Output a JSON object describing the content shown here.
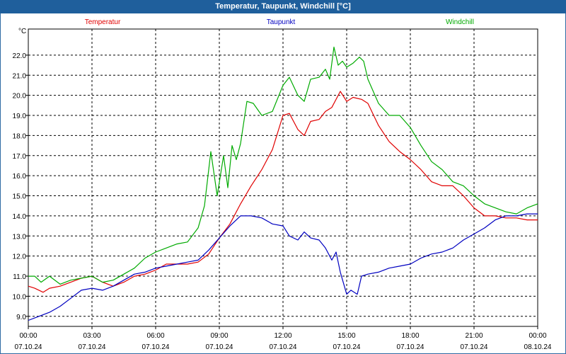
{
  "title": "Temperatur, Taupunkt, Windchill [°C]",
  "chart_data": {
    "type": "line",
    "title": "Temperatur, Taupunkt, Windchill [°C]",
    "ylabel": "°C",
    "ylim": [
      8.5,
      23.3
    ],
    "xlim": [
      0,
      24
    ],
    "y_ticks": [
      "9.0",
      "10.0",
      "11.0",
      "12.0",
      "13.0",
      "14.0",
      "15.0",
      "16.0",
      "17.0",
      "18.0",
      "19.0",
      "20.0",
      "21.0",
      "22.0"
    ],
    "x_ticks": [
      {
        "time": "00:00",
        "date": "07.10.24",
        "h": 0
      },
      {
        "time": "03:00",
        "date": "07.10.24",
        "h": 3
      },
      {
        "time": "06:00",
        "date": "07.10.24",
        "h": 6
      },
      {
        "time": "09:00",
        "date": "07.10.24",
        "h": 9
      },
      {
        "time": "12:00",
        "date": "07.10.24",
        "h": 12
      },
      {
        "time": "15:00",
        "date": "07.10.24",
        "h": 15
      },
      {
        "time": "18:00",
        "date": "07.10.24",
        "h": 18
      },
      {
        "time": "21:00",
        "date": "07.10.24",
        "h": 21
      },
      {
        "time": "00:00",
        "date": "08.10.24",
        "h": 24
      }
    ],
    "grid": true,
    "series": [
      {
        "name": "Temperatur",
        "color": "#e00000",
        "x": [
          0,
          0.3,
          0.7,
          1.0,
          1.5,
          2.0,
          2.5,
          3.0,
          3.5,
          4.0,
          4.5,
          5.0,
          5.5,
          6.0,
          6.5,
          7.0,
          7.5,
          8.0,
          8.5,
          9.0,
          9.5,
          10.0,
          10.5,
          11.0,
          11.5,
          12.0,
          12.3,
          12.7,
          13.0,
          13.3,
          13.7,
          14.0,
          14.3,
          14.7,
          15.0,
          15.3,
          15.7,
          16.0,
          16.5,
          17.0,
          17.5,
          18.0,
          18.5,
          19.0,
          19.5,
          20.0,
          20.5,
          21.0,
          21.5,
          22.0,
          22.5,
          23.0,
          23.5,
          24.0
        ],
        "y": [
          10.5,
          10.4,
          10.2,
          10.4,
          10.5,
          10.7,
          10.9,
          11.0,
          10.7,
          10.5,
          10.7,
          11.0,
          11.1,
          11.3,
          11.6,
          11.6,
          11.6,
          11.7,
          12.1,
          12.9,
          13.6,
          14.6,
          15.5,
          16.3,
          17.3,
          19.0,
          19.1,
          18.3,
          18.0,
          18.7,
          18.8,
          19.2,
          19.4,
          20.2,
          19.7,
          19.9,
          19.8,
          19.6,
          18.5,
          17.7,
          17.2,
          16.8,
          16.3,
          15.7,
          15.5,
          15.5,
          15.0,
          14.4,
          14.0,
          14.0,
          13.9,
          13.9,
          13.8,
          13.8
        ]
      },
      {
        "name": "Taupunkt",
        "color": "#0000c0",
        "x": [
          0,
          0.5,
          1.0,
          1.5,
          2.0,
          2.5,
          3.0,
          3.5,
          4.0,
          4.5,
          5.0,
          5.5,
          6.0,
          6.5,
          7.0,
          7.5,
          8.0,
          8.5,
          9.0,
          9.5,
          10.0,
          10.5,
          11.0,
          11.5,
          12.0,
          12.3,
          12.7,
          13.0,
          13.3,
          13.7,
          14.0,
          14.3,
          14.5,
          14.7,
          15.0,
          15.2,
          15.5,
          15.7,
          16.0,
          16.5,
          17.0,
          17.5,
          18.0,
          18.5,
          19.0,
          19.5,
          20.0,
          20.5,
          21.0,
          21.5,
          22.0,
          22.5,
          23.0,
          23.5,
          24.0
        ],
        "y": [
          8.8,
          9.0,
          9.2,
          9.5,
          9.9,
          10.3,
          10.4,
          10.3,
          10.5,
          10.8,
          11.1,
          11.2,
          11.4,
          11.5,
          11.6,
          11.7,
          11.8,
          12.3,
          12.9,
          13.5,
          14.0,
          14.0,
          13.9,
          13.6,
          13.5,
          13.0,
          12.8,
          13.2,
          12.9,
          12.8,
          12.4,
          11.8,
          12.2,
          11.2,
          10.1,
          10.3,
          10.1,
          11.0,
          11.1,
          11.2,
          11.4,
          11.5,
          11.6,
          11.9,
          12.1,
          12.2,
          12.4,
          12.8,
          13.1,
          13.4,
          13.8,
          14.0,
          14.0,
          14.1,
          14.1
        ]
      },
      {
        "name": "Windchill",
        "color": "#00aa00",
        "x": [
          0,
          0.3,
          0.6,
          1.0,
          1.5,
          2.0,
          2.5,
          3.0,
          3.5,
          4.0,
          4.5,
          5.0,
          5.5,
          6.0,
          6.5,
          7.0,
          7.5,
          8.0,
          8.3,
          8.6,
          8.9,
          9.2,
          9.4,
          9.6,
          9.8,
          10.0,
          10.3,
          10.6,
          11.0,
          11.5,
          12.0,
          12.3,
          12.7,
          13.0,
          13.3,
          13.7,
          14.0,
          14.2,
          14.4,
          14.6,
          14.8,
          15.0,
          15.3,
          15.6,
          15.8,
          16.0,
          16.5,
          17.0,
          17.5,
          18.0,
          18.5,
          19.0,
          19.5,
          20.0,
          20.5,
          21.0,
          21.5,
          22.0,
          22.5,
          23.0,
          23.5,
          24.0
        ],
        "y": [
          11.0,
          11.0,
          10.7,
          11.0,
          10.6,
          10.8,
          10.9,
          11.0,
          10.7,
          10.8,
          11.1,
          11.4,
          11.9,
          12.2,
          12.4,
          12.6,
          12.7,
          13.4,
          14.5,
          17.2,
          15.0,
          17.0,
          15.4,
          17.5,
          16.8,
          17.6,
          19.7,
          19.6,
          19.0,
          19.2,
          20.5,
          20.9,
          20.0,
          19.7,
          20.8,
          20.9,
          21.3,
          20.8,
          22.4,
          21.5,
          21.7,
          21.4,
          21.6,
          21.9,
          21.7,
          20.8,
          19.6,
          19.0,
          19.0,
          18.4,
          17.5,
          16.7,
          16.3,
          15.7,
          15.5,
          15.0,
          14.6,
          14.4,
          14.2,
          14.1,
          14.4,
          14.6
        ]
      }
    ]
  }
}
